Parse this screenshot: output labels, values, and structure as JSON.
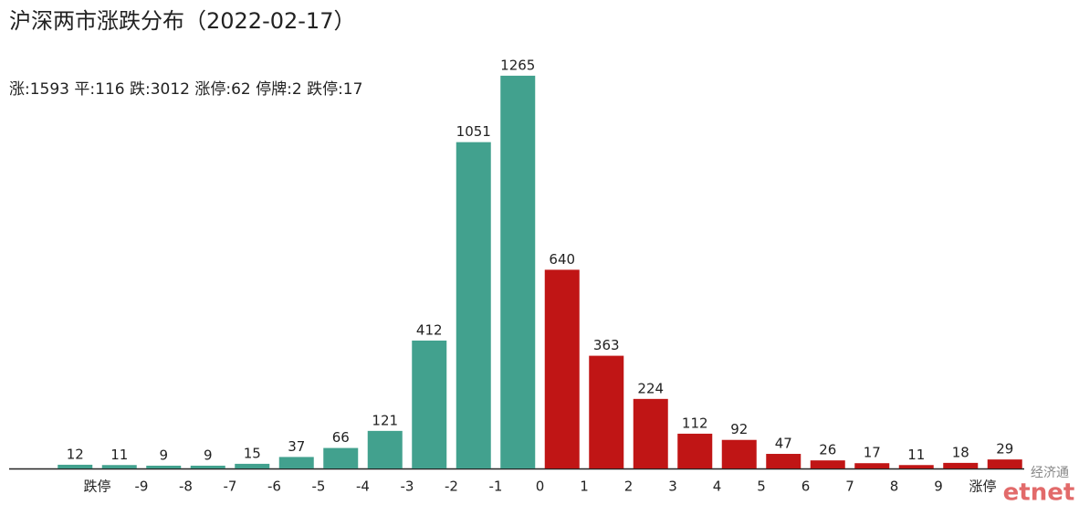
{
  "chart_data": {
    "type": "bar",
    "title": "沪深两市涨跌分布（2022-02-17）",
    "subtitle": "涨:1593 平:116 跌:3012 涨停:62 停牌:2 跌停:17",
    "edge_labels": [
      "跌停",
      "-9",
      "-8",
      "-7",
      "-6",
      "-5",
      "-4",
      "-3",
      "-2",
      "-1",
      "0",
      "1",
      "2",
      "3",
      "4",
      "5",
      "6",
      "7",
      "8",
      "9",
      "涨停"
    ],
    "values": [
      12,
      11,
      9,
      9,
      15,
      37,
      66,
      121,
      412,
      1051,
      1265,
      640,
      363,
      224,
      112,
      92,
      47,
      26,
      17,
      11,
      18,
      29
    ],
    "colors": [
      "#42a18e",
      "#42a18e",
      "#42a18e",
      "#42a18e",
      "#42a18e",
      "#42a18e",
      "#42a18e",
      "#42a18e",
      "#42a18e",
      "#42a18e",
      "#42a18e",
      "#c01515",
      "#c01515",
      "#c01515",
      "#c01515",
      "#c01515",
      "#c01515",
      "#c01515",
      "#c01515",
      "#c01515",
      "#c01515",
      "#c01515"
    ],
    "ylim": [
      0,
      1300
    ],
    "watermark": [
      "经济通",
      "etnet"
    ]
  }
}
